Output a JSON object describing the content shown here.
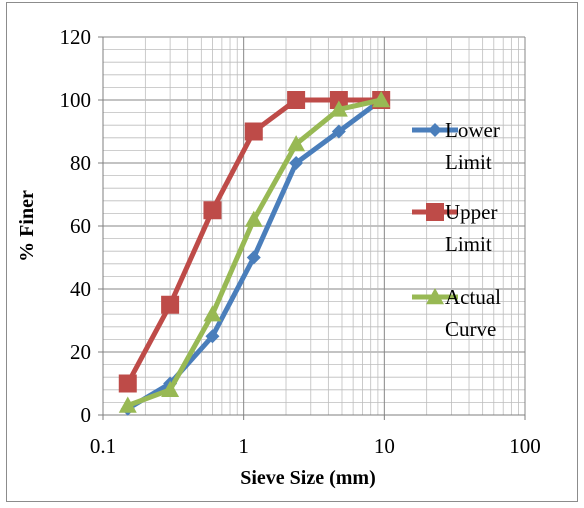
{
  "chart_data": {
    "type": "line",
    "xscale": "log",
    "xlabel": "Sieve Size (mm)",
    "ylabel": "% Finer",
    "xlim": [
      0.1,
      100
    ],
    "ylim": [
      0,
      120
    ],
    "x_ticks": [
      "0.1",
      "1",
      "10",
      "100"
    ],
    "y_ticks": [
      "0",
      "20",
      "40",
      "60",
      "80",
      "100",
      "120"
    ],
    "grid": true,
    "legend_position": "right",
    "series": [
      {
        "name_lines": [
          "Lower",
          "Limit"
        ],
        "color": "#4a7ebb",
        "marker": "diamond",
        "x": [
          0.15,
          0.3,
          0.6,
          1.18,
          2.36,
          4.75,
          9.5
        ],
        "y": [
          2,
          10,
          25,
          50,
          80,
          90,
          100
        ]
      },
      {
        "name_lines": [
          "Upper",
          "Limit"
        ],
        "color": "#be4b48",
        "marker": "square",
        "x": [
          0.15,
          0.3,
          0.6,
          1.18,
          2.36,
          4.75,
          9.5
        ],
        "y": [
          10,
          35,
          65,
          90,
          100,
          100,
          100
        ]
      },
      {
        "name_lines": [
          "Actual",
          "Curve"
        ],
        "color": "#98b954",
        "marker": "triangle",
        "x": [
          0.15,
          0.3,
          0.6,
          1.18,
          2.36,
          4.75,
          9.5
        ],
        "y": [
          3,
          8,
          32,
          62,
          86,
          97,
          100
        ]
      }
    ]
  }
}
